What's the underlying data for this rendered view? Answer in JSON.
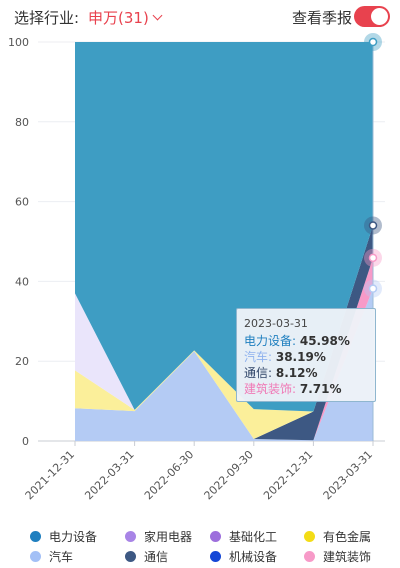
{
  "header": {
    "industry_label": "选择行业:",
    "industry_value": "申万(31)",
    "season_toggle_label": "查看季报"
  },
  "chart_data": {
    "type": "area",
    "stacked": true,
    "x": [
      "2021-12-31",
      "2022-03-31",
      "2022-06-30",
      "2022-09-30",
      "2022-12-31",
      "2023-03-31"
    ],
    "ylim": [
      0,
      100
    ],
    "yticks": [
      0,
      20,
      40,
      60,
      80,
      100
    ],
    "grid": true,
    "legend_position": "bottom",
    "series": [
      {
        "name": "汽车",
        "color": "#b4cbf4",
        "values": [
          8.2,
          7.5,
          22.5,
          0.5,
          0.2,
          38.19
        ]
      },
      {
        "name": "建筑装饰",
        "color": "#f79ac8",
        "values": [
          0,
          0,
          0,
          0,
          0,
          7.71
        ]
      },
      {
        "name": "通信",
        "color": "#3d5883",
        "values": [
          0,
          0,
          0,
          0,
          7.2,
          8.12
        ]
      },
      {
        "name": "有色金属",
        "color": "#fbef9a",
        "values": [
          9.5,
          0.3,
          0.2,
          7.5,
          0,
          0
        ]
      },
      {
        "name": "家用电器",
        "color": "#eae5fb",
        "values": [
          19.3,
          0,
          0,
          0,
          0,
          0
        ]
      },
      {
        "name": "电力设备",
        "color": "#3e9dc3",
        "values": [
          63.0,
          92.2,
          77.3,
          92.0,
          92.6,
          45.98
        ]
      },
      {
        "name": "基础化工",
        "color": "#9d6fdc",
        "values": [
          0,
          0,
          0,
          0,
          0,
          0
        ]
      },
      {
        "name": "机械设备",
        "color": "#1446d6",
        "values": [
          0,
          0,
          0,
          0,
          0,
          0
        ]
      }
    ],
    "legend": [
      {
        "name": "电力设备",
        "color": "#1f7fbf"
      },
      {
        "name": "家用电器",
        "color": "#a884e6"
      },
      {
        "name": "基础化工",
        "color": "#9d6fdc"
      },
      {
        "name": "有色金属",
        "color": "#f3dc16"
      },
      {
        "name": "汽车",
        "color": "#a3c0f6"
      },
      {
        "name": "通信",
        "color": "#3d5883"
      },
      {
        "name": "机械设备",
        "color": "#1446d6"
      },
      {
        "name": "建筑装饰",
        "color": "#f79ac8"
      }
    ]
  },
  "tooltip": {
    "date": "2023-03-31",
    "rows": [
      {
        "name": "电力设备",
        "value": "45.98%",
        "color": "#1f7fbf"
      },
      {
        "name": "汽车",
        "value": "38.19%",
        "color": "#8fb2ee"
      },
      {
        "name": "通信",
        "value": "8.12%",
        "color": "#2f4468"
      },
      {
        "name": "建筑装饰",
        "value": "7.71%",
        "color": "#f079b6"
      }
    ]
  }
}
